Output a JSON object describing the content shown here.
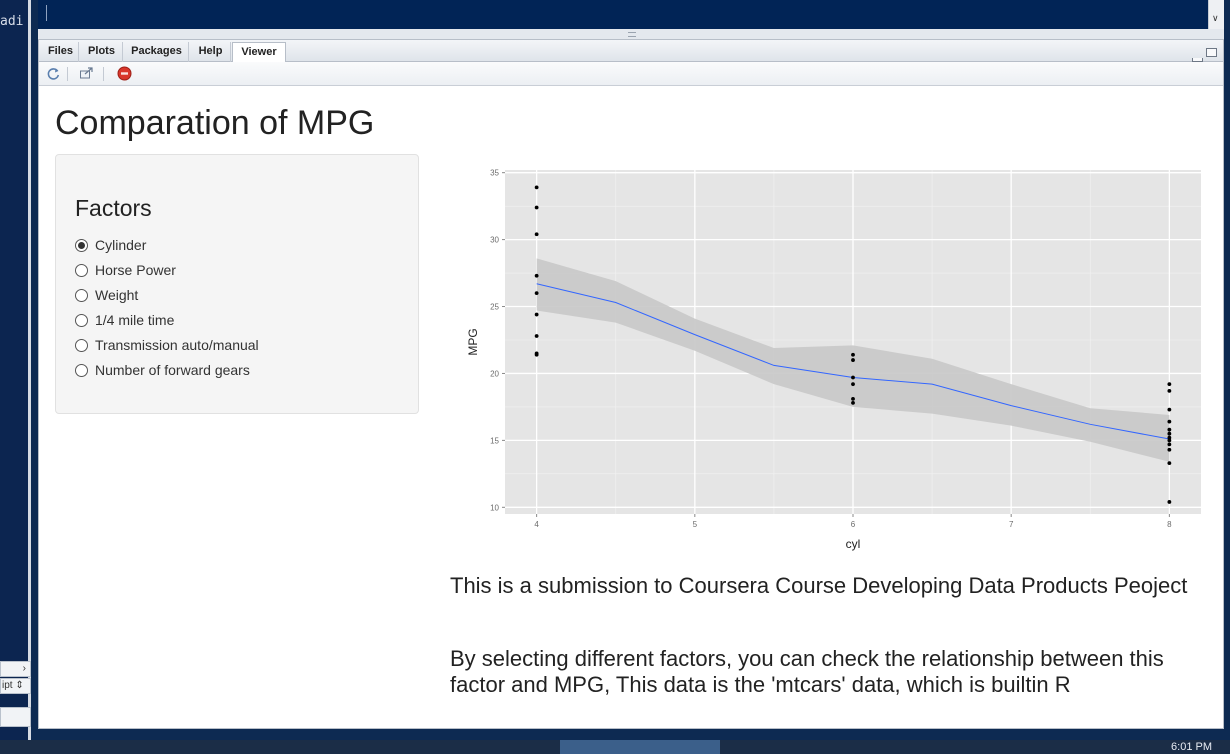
{
  "left_panel": {
    "code_fragment": "adi",
    "select_label": "ipt"
  },
  "tabs": [
    {
      "label": "Files"
    },
    {
      "label": "Plots"
    },
    {
      "label": "Packages"
    },
    {
      "label": "Help"
    },
    {
      "label": "Viewer"
    }
  ],
  "active_tab": "Viewer",
  "toolbar": {
    "icons": [
      "refresh-icon",
      "popout-icon",
      "stop-icon"
    ]
  },
  "app": {
    "title": "Comparation of MPG",
    "sidebar": {
      "heading": "Factors",
      "options": [
        "Cylinder",
        "Horse Power",
        "Weight",
        "1/4 mile time",
        "Transmission auto/manual",
        "Number of forward gears"
      ],
      "selected_index": 0
    },
    "description": [
      "This is a submission to Coursera Course Developing Data Products Peoject",
      "By selecting different factors, you can check the relationship between this factor and MPG, This data is the 'mtcars' data, which is builtin R"
    ]
  },
  "chart_data": {
    "type": "scatter",
    "xlabel": "cyl",
    "ylabel": "MPG",
    "xlim": [
      3.8,
      8.2
    ],
    "ylim": [
      9.5,
      35.2
    ],
    "x_ticks": [
      4,
      5,
      6,
      7,
      8
    ],
    "y_ticks": [
      10,
      15,
      20,
      25,
      30,
      35
    ],
    "grid": true,
    "colors": {
      "panel": "#e5e5e5",
      "grid": "#ffffff",
      "points": "#000000",
      "smooth": "#3366ff",
      "band": "#c8c8c8"
    },
    "points": [
      [
        4,
        33.9
      ],
      [
        4,
        32.4
      ],
      [
        4,
        30.4
      ],
      [
        4,
        27.3
      ],
      [
        4,
        26.0
      ],
      [
        4,
        24.4
      ],
      [
        4,
        22.8
      ],
      [
        4,
        21.5
      ],
      [
        4,
        21.4
      ],
      [
        6,
        21.4
      ],
      [
        6,
        21.0
      ],
      [
        6,
        19.7
      ],
      [
        6,
        19.2
      ],
      [
        6,
        18.1
      ],
      [
        6,
        17.8
      ],
      [
        8,
        19.2
      ],
      [
        8,
        18.7
      ],
      [
        8,
        17.3
      ],
      [
        8,
        16.4
      ],
      [
        8,
        15.8
      ],
      [
        8,
        15.5
      ],
      [
        8,
        15.2
      ],
      [
        8,
        15.0
      ],
      [
        8,
        14.7
      ],
      [
        8,
        14.3
      ],
      [
        8,
        13.3
      ],
      [
        8,
        10.4
      ]
    ],
    "smooth": {
      "x": [
        4,
        4.5,
        5,
        5.5,
        6,
        6.5,
        7,
        7.5,
        8
      ],
      "y": [
        26.7,
        25.3,
        22.9,
        20.6,
        19.7,
        19.2,
        17.6,
        16.2,
        15.1
      ],
      "lower": [
        24.7,
        23.8,
        21.7,
        19.2,
        17.5,
        17.0,
        16.1,
        14.9,
        13.4
      ],
      "upper": [
        28.6,
        26.9,
        24.1,
        21.9,
        22.1,
        21.1,
        19.2,
        17.4,
        16.9
      ]
    }
  },
  "taskbar": {
    "clock": "6:01 PM"
  }
}
